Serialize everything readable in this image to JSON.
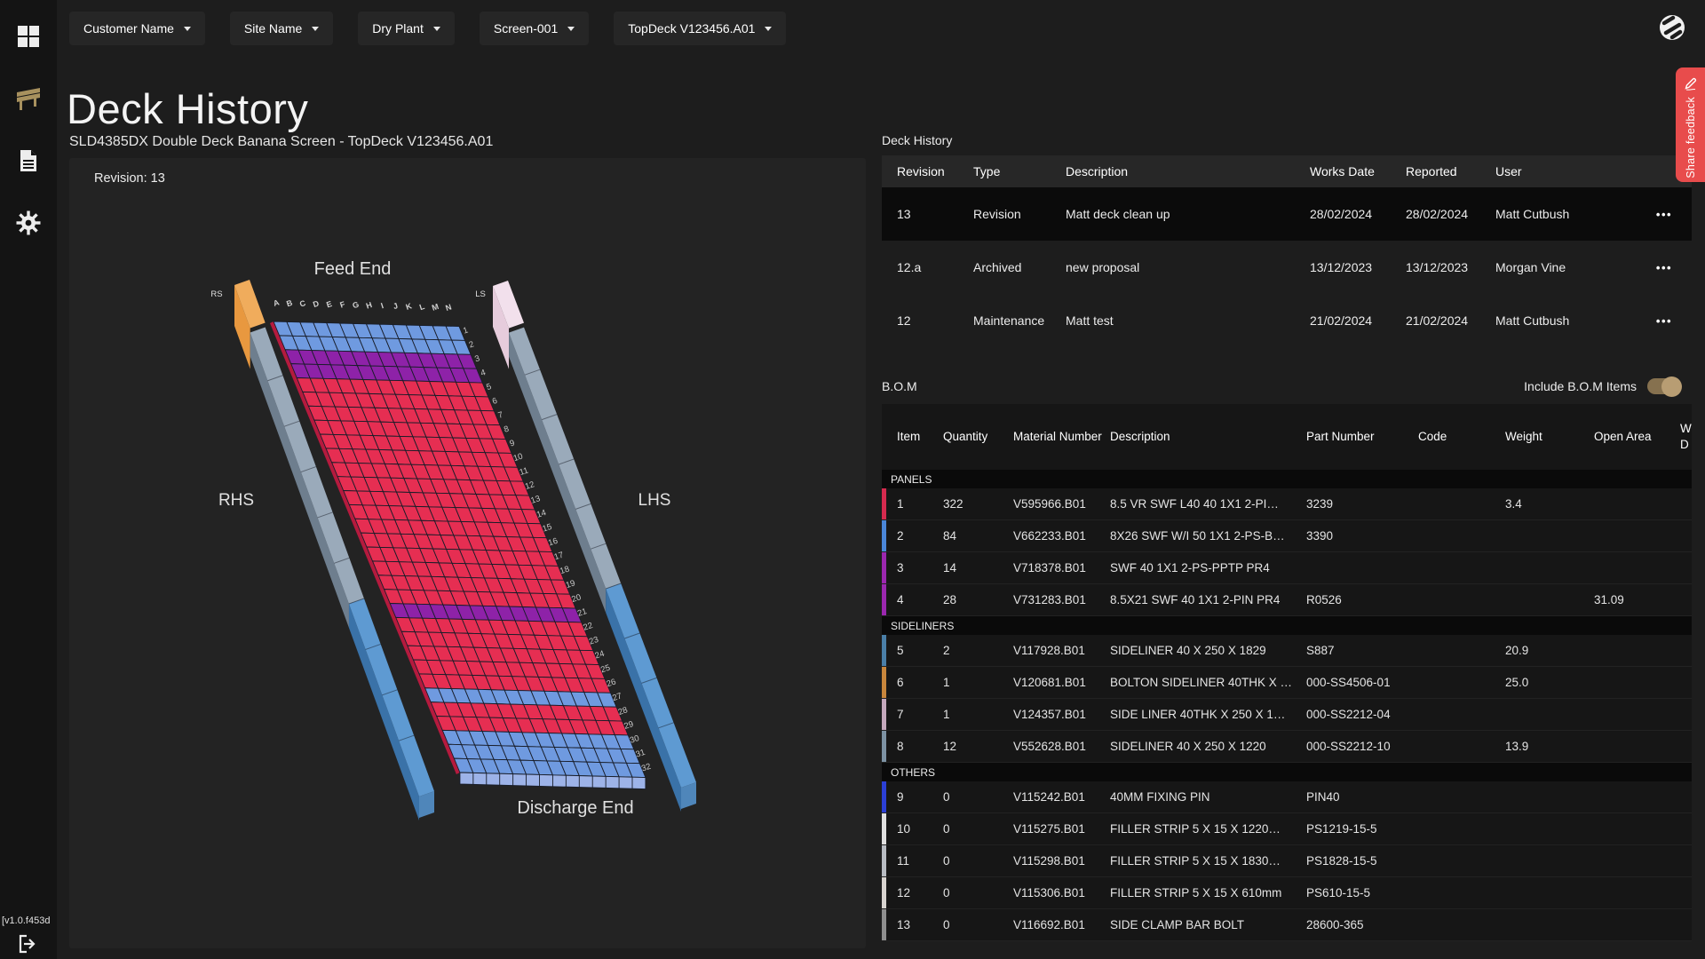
{
  "top_bar": {
    "dropdowns": [
      "Customer Name",
      "Site Name",
      "Dry Plant",
      "Screen-001",
      "TopDeck V123456.A01"
    ],
    "logo": "striped-circle-logo"
  },
  "sidebar": {
    "icons": [
      "dashboard-grid",
      "deck",
      "documents",
      "settings"
    ],
    "version": "[v1.0.f453d",
    "logout_icon": "logout"
  },
  "page": {
    "title": "Deck History",
    "subtitle": "SLD4385DX Double Deck Banana Screen - TopDeck V123456.A01"
  },
  "deck_view": {
    "revision_label": "Revision: 13",
    "labels": {
      "feed_end": "Feed End",
      "discharge_end": "Discharge End",
      "rhs": "RHS",
      "lhs": "LHS",
      "rs": "RS",
      "ls": "LS"
    },
    "column_letters": [
      "A",
      "B",
      "C",
      "D",
      "E",
      "F",
      "G",
      "H",
      "I",
      "J",
      "K",
      "L",
      "M",
      "N"
    ],
    "row_count": 32,
    "row_colors": [
      "blue",
      "blue",
      "purple",
      "purple",
      "red",
      "red",
      "red",
      "red",
      "red",
      "red",
      "red",
      "red",
      "red",
      "red",
      "red",
      "red",
      "red",
      "red",
      "red",
      "red",
      "purple",
      "red",
      "red",
      "red",
      "red",
      "red",
      "blue",
      "red",
      "red",
      "blue",
      "blue",
      "blue"
    ],
    "palette": {
      "red": "#e62e52",
      "blue": "#6f9ae0",
      "purple": "#8e22a8"
    },
    "front_face": "#9db3e8",
    "left_edge": "#b51a3e",
    "rails": {
      "left_cap_top": "#f0ac5c",
      "left_cap_side": "#e8983f",
      "right_cap_top": "#f2e0ec",
      "right_cap_side": "#e6ccdc",
      "gray_top": "#9aaaba",
      "gray_side": "#6e7e8e",
      "blue_top": "#5e9ad2",
      "blue_side": "#3a72a8",
      "end_face": "#4f86ba"
    }
  },
  "history": {
    "title": "Deck History",
    "columns": [
      "Revision",
      "Type",
      "Description",
      "Works Date",
      "Reported",
      "User"
    ],
    "row_menu_icon": "•••",
    "rows": [
      {
        "revision": "13",
        "type": "Revision",
        "description": "Matt deck clean up",
        "works_date": "28/02/2024",
        "reported": "28/02/2024",
        "user": "Matt Cutbush",
        "selected": true
      },
      {
        "revision": "12.a",
        "type": "Archived",
        "description": "new proposal",
        "works_date": "13/12/2023",
        "reported": "13/12/2023",
        "user": "Morgan Vine",
        "selected": false
      },
      {
        "revision": "12",
        "type": "Maintenance",
        "description": "Matt test",
        "works_date": "21/02/2024",
        "reported": "21/02/2024",
        "user": "Matt Cutbush",
        "selected": false
      }
    ]
  },
  "bom": {
    "title": "B.O.M",
    "toggle_label": "Include B.O.M Items",
    "toggle_on": true,
    "columns": [
      "Item",
      "Quantity",
      "Material Number",
      "Description",
      "Part Number",
      "Code",
      "Weight",
      "Open Area",
      "W D"
    ],
    "groups": [
      {
        "name": "PANELS",
        "items": [
          {
            "item": "1",
            "quantity": "322",
            "material_number": "V595966.B01",
            "description": "8.5 VR SWF L40 40 1X1 2-PI…",
            "part_number": "3239",
            "code": "",
            "weight": "3.4",
            "open_area": "",
            "wear": "",
            "color": "#d62a4e"
          },
          {
            "item": "2",
            "quantity": "84",
            "material_number": "V662233.B01",
            "description": "8X26 SWF W/I 50 1X1 2-PS-B…",
            "part_number": "3390",
            "code": "",
            "weight": "",
            "open_area": "",
            "wear": "",
            "color": "#4a86d8"
          },
          {
            "item": "3",
            "quantity": "14",
            "material_number": "V718378.B01",
            "description": "SWF 40 1X1 2-PS-PPTP PR4",
            "part_number": "",
            "code": "",
            "weight": "",
            "open_area": "",
            "wear": "",
            "color": "#9b27af"
          },
          {
            "item": "4",
            "quantity": "28",
            "material_number": "V731283.B01",
            "description": "8.5X21 SWF 40 1X1 2-PIN PR4",
            "part_number": "R0526",
            "code": "",
            "weight": "",
            "open_area": "31.09",
            "wear": "",
            "color": "#9b27af"
          }
        ]
      },
      {
        "name": "SIDELINERS",
        "items": [
          {
            "item": "5",
            "quantity": "2",
            "material_number": "V117928.B01",
            "description": "SIDELINER 40 X 250 X 1829",
            "part_number": "S887",
            "code": "",
            "weight": "20.9",
            "open_area": "",
            "wear": "",
            "color": "#4a7fa8"
          },
          {
            "item": "6",
            "quantity": "1",
            "material_number": "V120681.B01",
            "description": "BOLTON SIDELINER 40THK X …",
            "part_number": "000-SS4506-01",
            "code": "",
            "weight": "25.0",
            "open_area": "",
            "wear": "",
            "color": "#c8863c"
          },
          {
            "item": "7",
            "quantity": "1",
            "material_number": "V124357.B01",
            "description": "SIDE LINER 40THK X 250 X 1…",
            "part_number": "000-SS2212-04",
            "code": "",
            "weight": "",
            "open_area": "",
            "wear": "",
            "color": "#c4a8bc"
          },
          {
            "item": "8",
            "quantity": "12",
            "material_number": "V552628.B01",
            "description": "SIDELINER 40 X 250 X 1220",
            "part_number": "000-SS2212-10",
            "code": "",
            "weight": "13.9",
            "open_area": "",
            "wear": "",
            "color": "#7d92a3"
          }
        ]
      },
      {
        "name": "OTHERS",
        "items": [
          {
            "item": "9",
            "quantity": "0",
            "material_number": "V115242.B01",
            "description": "40MM FIXING PIN",
            "part_number": "PIN40",
            "code": "",
            "weight": "",
            "open_area": "",
            "wear": "",
            "color": "#2b3fd6"
          },
          {
            "item": "10",
            "quantity": "0",
            "material_number": "V115275.B01",
            "description": "FILLER STRIP 5 X 15 X 1220…",
            "part_number": "PS1219-15-5",
            "code": "",
            "weight": "",
            "open_area": "",
            "wear": "",
            "color": "#e0e0e0"
          },
          {
            "item": "11",
            "quantity": "0",
            "material_number": "V115298.B01",
            "description": "FILLER STRIP 5 X 15 X 1830…",
            "part_number": "PS1828-15-5",
            "code": "",
            "weight": "",
            "open_area": "",
            "wear": "",
            "color": "#b8bcc2"
          },
          {
            "item": "12",
            "quantity": "0",
            "material_number": "V115306.B01",
            "description": "FILLER STRIP 5 X 15 X 610mm",
            "part_number": "PS610-15-5",
            "code": "",
            "weight": "",
            "open_area": "",
            "wear": "",
            "color": "#d8d4d0"
          },
          {
            "item": "13",
            "quantity": "0",
            "material_number": "V116692.B01",
            "description": "SIDE CLAMP BAR BOLT",
            "part_number": "28600-365",
            "code": "",
            "weight": "",
            "open_area": "",
            "wear": "",
            "color": "#8e8e8e"
          }
        ]
      }
    ]
  },
  "feedback": {
    "label": "Share feedback"
  },
  "colors": {
    "accent_red": "#e84c4c",
    "toggle_track": "#86714f",
    "toggle_knob": "#b89d73",
    "sidebar_deck_icon": "#a8915e"
  }
}
